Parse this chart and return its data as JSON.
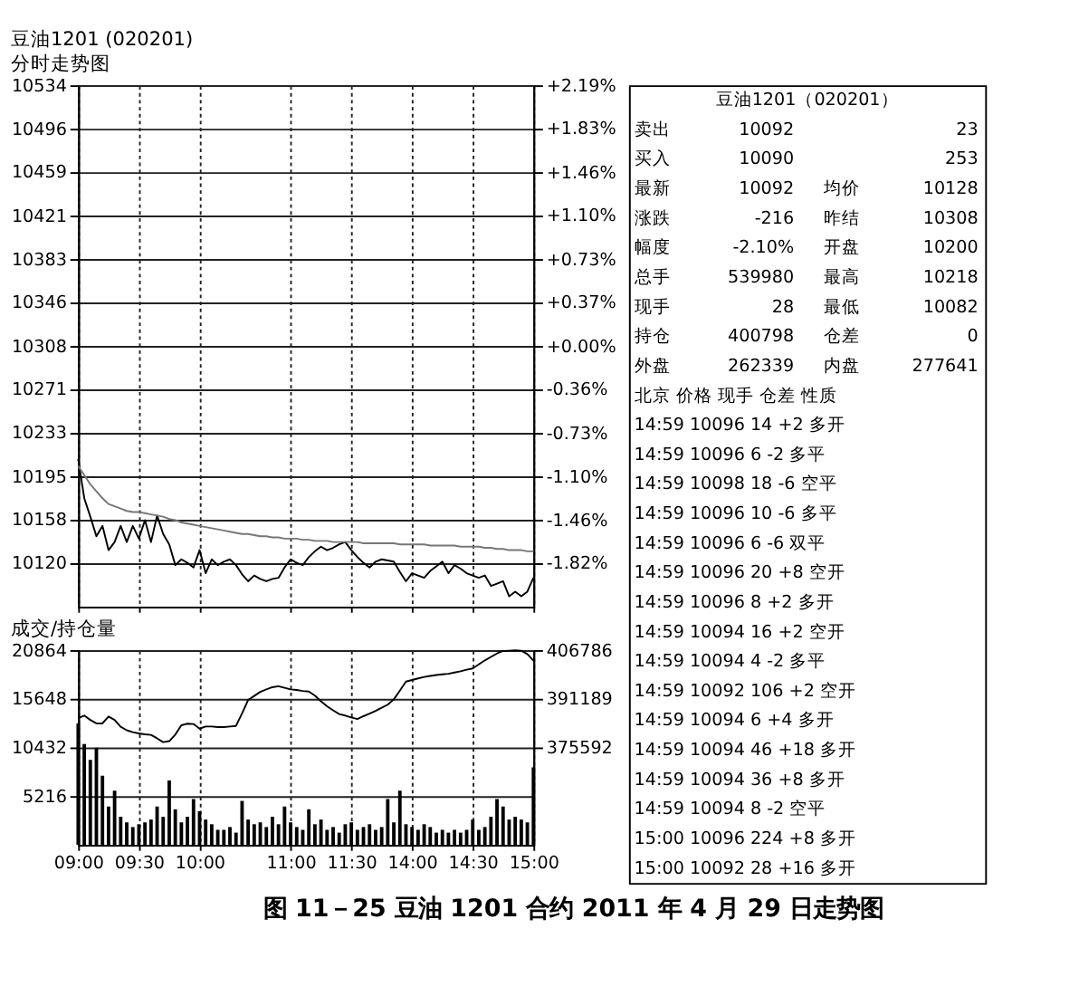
{
  "chart_data": [
    {
      "type": "line",
      "title": "豆油1201 (020201)",
      "subtitle": "分时走势图",
      "annotations": [
        "图 11－25 豆油 1201 合约 2011 年 4 月 29 日走势图"
      ],
      "categories": [
        null,
        null,
        null,
        null,
        null,
        null,
        null,
        null,
        null,
        null,
        null,
        null,
        null,
        null,
        null,
        null,
        null,
        null,
        null,
        null,
        null,
        null,
        null,
        null,
        null,
        null,
        null,
        null,
        null,
        null,
        null,
        null,
        null,
        null,
        null,
        null,
        null,
        null,
        null,
        null,
        null,
        null,
        null,
        null,
        null,
        null,
        null,
        null,
        null,
        null,
        null,
        null,
        null,
        null,
        null,
        null,
        null,
        null,
        null,
        null,
        null,
        null,
        null,
        null,
        null,
        null,
        null,
        null,
        null,
        null,
        null,
        null,
        null,
        null,
        null,
        null
      ],
      "ylim": [
        10082,
        10534
      ],
      "yticks": [
        10534,
        10496,
        10459,
        10421,
        10383,
        10346,
        10308,
        10271,
        10233,
        10195,
        10158,
        10120
      ],
      "y2lim": [
        -2.19,
        2.19
      ],
      "y2ticks": [
        {
          "value": 2.19,
          "label": "+2.19%"
        },
        {
          "value": 1.83,
          "label": "+1.83%"
        },
        {
          "value": 1.46,
          "label": "+1.46%"
        },
        {
          "value": 1.1,
          "label": "+1.10%"
        },
        {
          "value": 0.73,
          "label": "+0.73%"
        },
        {
          "value": 0.37,
          "label": "+0.37%"
        },
        {
          "value": 0,
          "label": "+0.00%"
        },
        {
          "value": -0.36,
          "label": "-0.36%"
        },
        {
          "value": -0.73,
          "label": "-0.73%"
        },
        {
          "value": -1.1,
          "label": "-1.10%"
        },
        {
          "value": -1.46,
          "label": "-1.46%"
        },
        {
          "value": -1.82,
          "label": "-1.82%"
        }
      ],
      "tick_labels": "y",
      "grid": true,
      "series": [
        {
          "color": "#000000",
          "values": [
            10210,
            10176,
            10160,
            10143,
            10152,
            10131,
            10138,
            10152,
            10138,
            10152,
            10141,
            10157,
            10138,
            10161,
            10145,
            10136,
            10118,
            10123,
            10120,
            10116,
            10131,
            10111,
            10123,
            10118,
            10121,
            10123,
            10118,
            10110,
            10104,
            10109,
            10106,
            10104,
            10106,
            10107,
            10116,
            10123,
            10120,
            10118,
            10125,
            10130,
            10134,
            10131,
            10133,
            10136,
            10138,
            10131,
            10125,
            10120,
            10116,
            10121,
            10123,
            10122,
            10121,
            10112,
            10104,
            10111,
            10109,
            10107,
            10113,
            10117,
            10121,
            10111,
            10118,
            10115,
            10111,
            10109,
            10107,
            10109,
            10100,
            10102,
            10104,
            10091,
            10095,
            10091,
            10095,
            10107
          ]
        },
        {
          "color": "#777777",
          "values": [
            10204,
            10196,
            10188,
            10182,
            10176,
            10171,
            10169,
            10167,
            10165,
            10164,
            10164,
            10163,
            10162,
            10161,
            10160,
            10158,
            10157,
            10155,
            10154,
            10153,
            10152,
            10151,
            10150,
            10149,
            10148,
            10147,
            10146,
            10145,
            10145,
            10144,
            10143,
            10143,
            10142,
            10142,
            10141,
            10141,
            10141,
            10140,
            10140,
            10139,
            10139,
            10139,
            10138,
            10138,
            10138,
            10138,
            10138,
            10137,
            10137,
            10137,
            10137,
            10137,
            10137,
            10136,
            10136,
            10136,
            10136,
            10136,
            10135,
            10135,
            10135,
            10135,
            10135,
            10134,
            10134,
            10134,
            10134,
            10133,
            10133,
            10132,
            10132,
            10131,
            10131,
            10131,
            10130,
            10130
          ]
        }
      ]
    },
    {
      "type": "bar",
      "title": "成交/持仓量",
      "categories": [
        "09:00",
        null,
        null,
        null,
        null,
        null,
        null,
        null,
        null,
        null,
        "09:30",
        null,
        null,
        null,
        null,
        null,
        null,
        null,
        null,
        null,
        "10:00",
        null,
        null,
        null,
        null,
        null,
        null,
        null,
        null,
        null,
        null,
        null,
        null,
        null,
        null,
        "11:00",
        null,
        null,
        null,
        null,
        null,
        null,
        null,
        null,
        null,
        "11:30",
        null,
        null,
        null,
        null,
        null,
        null,
        null,
        null,
        null,
        "14:00",
        null,
        null,
        null,
        null,
        null,
        null,
        null,
        null,
        null,
        "14:30",
        null,
        null,
        null,
        null,
        null,
        null,
        null,
        null,
        null,
        "15:00"
      ],
      "ylim": [
        0,
        20864
      ],
      "yticks": [
        5216,
        10432,
        15648,
        20864
      ],
      "y2lim": [
        344398,
        406786
      ],
      "y2ticks": [
        375592,
        391189,
        406786
      ],
      "grid": true,
      "series": [
        {
          "color": "#000000",
          "values": [
            13000,
            10800,
            9100,
            10400,
            7400,
            4100,
            5800,
            3000,
            2400,
            1900,
            2200,
            2400,
            2700,
            4100,
            3000,
            6900,
            3800,
            2400,
            3000,
            4900,
            3600,
            2700,
            2200,
            1600,
            1600,
            1900,
            1300,
            4700,
            2700,
            2200,
            2400,
            1900,
            3000,
            2200,
            4100,
            2400,
            1900,
            1600,
            3800,
            2200,
            2700,
            1600,
            1900,
            1300,
            2200,
            2400,
            1600,
            1900,
            2200,
            1600,
            1900,
            4900,
            2400,
            5800,
            2200,
            1900,
            1600,
            2200,
            1900,
            1300,
            1600,
            1300,
            1600,
            1300,
            1600,
            2700,
            1600,
            1900,
            3000,
            4900,
            4100,
            2700,
            3000,
            2700,
            2400,
            8300
          ]
        },
        {
          "type": "line",
          "axis": "y2",
          "color": "#000000",
          "values": [
            385000,
            385800,
            384400,
            383300,
            383300,
            385500,
            384400,
            382200,
            381100,
            380500,
            380100,
            379800,
            379600,
            378500,
            377300,
            377600,
            379700,
            382700,
            383200,
            383100,
            381600,
            382300,
            382300,
            382100,
            382100,
            382300,
            382500,
            386500,
            390800,
            392100,
            393400,
            394200,
            394900,
            395200,
            394700,
            394200,
            394000,
            393700,
            393500,
            392200,
            390400,
            388800,
            387500,
            386300,
            385800,
            385200,
            384700,
            385600,
            386400,
            387300,
            388300,
            389300,
            391000,
            393800,
            396700,
            397200,
            397700,
            398200,
            398500,
            398800,
            399000,
            399200,
            399600,
            400000,
            400500,
            400900,
            402200,
            403500,
            404600,
            405700,
            406500,
            406600,
            406700,
            406600,
            405500,
            403400
          ]
        }
      ]
    },
    {
      "type": "other",
      "title": "豆油1201（020201）",
      "annotations": [
        "卖出 10092 23",
        "买入 10090 253",
        "最新 10092 均价 10128",
        "涨跌 -216 昨结 10308",
        "幅度 -2.10% 开盘 10200",
        "总手 539980 最高 10218",
        "现手 28 最低 10082",
        "持仓 400798 仓差 0",
        "外盘 262339 内盘 277641",
        "北京 价格 现手 仓差 性质",
        "14:59 10096 14 +2 多开",
        "14:59 10096 6 -2 多平",
        "14:59 10098 18 -6 空平",
        "14:59 10096 10 -6 多平",
        "14:59 10096 6 -6 双平",
        "14:59 10096 20 +8 空开",
        "14:59 10096 8 +2 多开",
        "14:59 10094 16 +2 空开",
        "14:59 10094 4 -2 多平",
        "14:59 10092 106 +2 空开",
        "14:59 10094 6 +4 多开",
        "14:59 10094 46 +18 多开",
        "14:59 10094 36 +8 多开",
        "14:59 10094 8 -2 空平",
        "15:00 10096 224 +8 多开",
        "15:00 10092 28 +16 多开"
      ]
    }
  ]
}
